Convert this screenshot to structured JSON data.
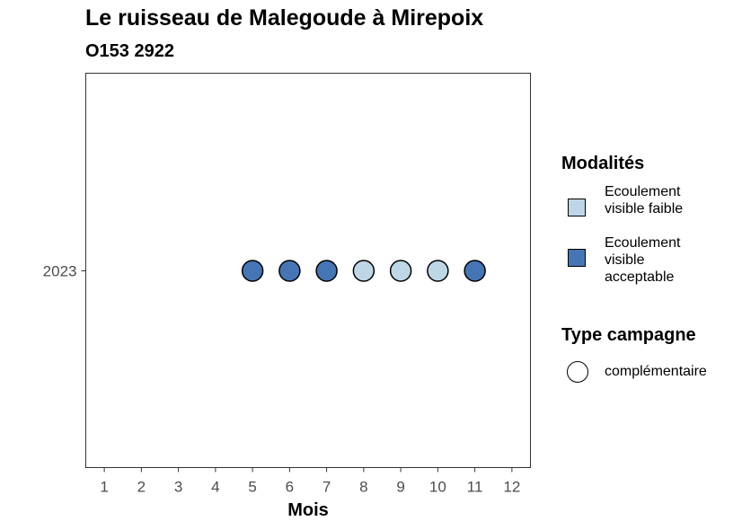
{
  "chart_data": {
    "type": "scatter",
    "title": "Le ruisseau de Malegoude à Mirepoix",
    "subtitle": "O153 2922",
    "xlabel": "Mois",
    "ylabel": "",
    "x_ticks": [
      "1",
      "2",
      "3",
      "4",
      "5",
      "6",
      "7",
      "8",
      "9",
      "10",
      "11",
      "12"
    ],
    "y_categories": [
      "2023"
    ],
    "xlim": [
      0.5,
      12.5
    ],
    "grid": false,
    "legend_position": "right",
    "points": [
      {
        "x": 5,
        "y": "2023",
        "modalite": "Ecoulement visible acceptable",
        "campagne": "complémentaire"
      },
      {
        "x": 6,
        "y": "2023",
        "modalite": "Ecoulement visible acceptable",
        "campagne": "complémentaire"
      },
      {
        "x": 7,
        "y": "2023",
        "modalite": "Ecoulement visible acceptable",
        "campagne": "complémentaire"
      },
      {
        "x": 8,
        "y": "2023",
        "modalite": "Ecoulement visible faible",
        "campagne": "complémentaire"
      },
      {
        "x": 9,
        "y": "2023",
        "modalite": "Ecoulement visible faible",
        "campagne": "complémentaire"
      },
      {
        "x": 10,
        "y": "2023",
        "modalite": "Ecoulement visible faible",
        "campagne": "complémentaire"
      },
      {
        "x": 11,
        "y": "2023",
        "modalite": "Ecoulement visible acceptable",
        "campagne": "complémentaire"
      }
    ],
    "colors": {
      "Ecoulement visible faible": "#bdd7e7",
      "Ecoulement visible acceptable": "#4575b4"
    }
  },
  "legend": {
    "modalites_title": "Modalités",
    "modalites": [
      {
        "label": "Ecoulement visible faible",
        "color": "#bdd7e7"
      },
      {
        "label": "Ecoulement visible acceptable",
        "color": "#4575b4"
      }
    ],
    "campagne_title": "Type campagne",
    "campagnes": [
      {
        "label": "complémentaire"
      }
    ]
  }
}
